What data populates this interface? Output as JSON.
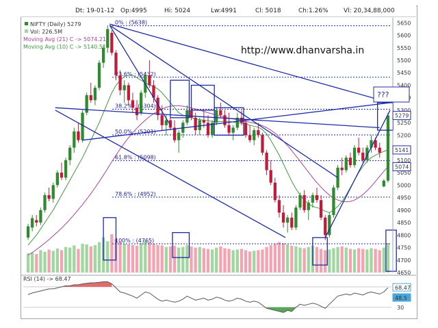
{
  "header": {
    "date": "Dt: 19-01-12",
    "open": "Op:4995",
    "high": "Hi: 5024",
    "low": "Lw:4991",
    "close": "Cl: 5018",
    "change": "Ch:1.26%",
    "volume": "Vl: 20,34,88,000"
  },
  "legend": {
    "symbol": "NIFTY (Daily) 5279",
    "volume": "Vol: 226.5M",
    "ma21": "Moving Avg (21) C -> 5074.21",
    "ma10": "Moving Avg (10) C -> 5140.51"
  },
  "watermark": "http://www.dhanvarsha.in",
  "question": "???",
  "rsi_label": "RSI (14) -> 68.47",
  "colors": {
    "up": "#2e8b2e",
    "down": "#c41a3a",
    "vol_up": "#9fd79f",
    "vol_down": "#f3a3b2",
    "ma21": "#b0409a",
    "ma10": "#3f9a3f",
    "trend": "#1c2aa8",
    "rsi": "#555555",
    "rsi_fill_high": "#e05050",
    "rsi_fill_low": "#3a9a3a",
    "badge_price": "#1c2aa8",
    "badge_rsi": "#49a6d8"
  },
  "chart_data": {
    "type": "candlestick",
    "y_axis_ticks": [
      5650,
      5600,
      5550,
      5500,
      5450,
      5400,
      5350,
      5300,
      5250,
      5200,
      5150,
      5100,
      5050,
      5000,
      4950,
      4900,
      4850,
      4800,
      4750,
      4700,
      4650
    ],
    "ylim": [
      4650,
      5670
    ],
    "price_badges": [
      "5279",
      "5141",
      "5074"
    ],
    "fibonacci": [
      {
        "label": "0% : (5638)",
        "value": 5638
      },
      {
        "label": "23.6% : (5432)",
        "value": 5432
      },
      {
        "label": "38.2% : (5304)",
        "value": 5304
      },
      {
        "label": "50.0% : (5201)",
        "value": 5201
      },
      {
        "label": "61.8% : (5098)",
        "value": 5098
      },
      {
        "label": "78.6% : (4952)",
        "value": 4952
      },
      {
        "label": "100% : (4765)",
        "value": 4765
      }
    ],
    "candles": [
      [
        4790,
        4845,
        4780,
        4835
      ],
      [
        4830,
        4880,
        4815,
        4868
      ],
      [
        4860,
        4880,
        4835,
        4850
      ],
      [
        4850,
        4910,
        4840,
        4900
      ],
      [
        4900,
        4970,
        4890,
        4960
      ],
      [
        4960,
        4990,
        4935,
        4945
      ],
      [
        4945,
        5010,
        4930,
        5000
      ],
      [
        5000,
        5060,
        4990,
        5050
      ],
      [
        5050,
        5090,
        5020,
        5030
      ],
      [
        5030,
        5110,
        5020,
        5100
      ],
      [
        5100,
        5160,
        5080,
        5150
      ],
      [
        5150,
        5230,
        5130,
        5215
      ],
      [
        5215,
        5250,
        5170,
        5180
      ],
      [
        5180,
        5300,
        5170,
        5290
      ],
      [
        5290,
        5370,
        5280,
        5360
      ],
      [
        5360,
        5410,
        5330,
        5340
      ],
      [
        5340,
        5400,
        5320,
        5390
      ],
      [
        5390,
        5500,
        5380,
        5490
      ],
      [
        5490,
        5560,
        5470,
        5550
      ],
      [
        5550,
        5640,
        5530,
        5625
      ],
      [
        5610,
        5620,
        5520,
        5530
      ],
      [
        5530,
        5540,
        5420,
        5440
      ],
      [
        5440,
        5460,
        5360,
        5380
      ],
      [
        5380,
        5420,
        5330,
        5400
      ],
      [
        5400,
        5410,
        5320,
        5340
      ],
      [
        5340,
        5370,
        5290,
        5310
      ],
      [
        5310,
        5340,
        5260,
        5280
      ],
      [
        5290,
        5380,
        5280,
        5370
      ],
      [
        5370,
        5450,
        5350,
        5440
      ],
      [
        5440,
        5500,
        5390,
        5400
      ],
      [
        5400,
        5420,
        5330,
        5350
      ],
      [
        5350,
        5360,
        5260,
        5280
      ],
      [
        5280,
        5320,
        5220,
        5240
      ],
      [
        5240,
        5280,
        5200,
        5260
      ],
      [
        5260,
        5300,
        5220,
        5230
      ],
      [
        5230,
        5260,
        5170,
        5180
      ],
      [
        5180,
        5220,
        5130,
        5210
      ],
      [
        5210,
        5260,
        5190,
        5250
      ],
      [
        5250,
        5320,
        5240,
        5300
      ],
      [
        5300,
        5340,
        5260,
        5270
      ],
      [
        5270,
        5290,
        5200,
        5220
      ],
      [
        5220,
        5270,
        5200,
        5260
      ],
      [
        5260,
        5300,
        5230,
        5250
      ],
      [
        5250,
        5280,
        5190,
        5200
      ],
      [
        5200,
        5260,
        5190,
        5250
      ],
      [
        5250,
        5310,
        5240,
        5300
      ],
      [
        5300,
        5330,
        5270,
        5280
      ],
      [
        5280,
        5300,
        5230,
        5240
      ],
      [
        5240,
        5290,
        5200,
        5210
      ],
      [
        5210,
        5240,
        5180,
        5230
      ],
      [
        5230,
        5290,
        5220,
        5270
      ],
      [
        5270,
        5300,
        5240,
        5250
      ],
      [
        5250,
        5260,
        5190,
        5200
      ],
      [
        5200,
        5240,
        5170,
        5180
      ],
      [
        5180,
        5230,
        5160,
        5220
      ],
      [
        5220,
        5250,
        5190,
        5200
      ],
      [
        5200,
        5210,
        5120,
        5130
      ],
      [
        5130,
        5140,
        5040,
        5060
      ],
      [
        5060,
        5100,
        5000,
        5010
      ],
      [
        5010,
        5030,
        4930,
        4940
      ],
      [
        4940,
        4960,
        4870,
        4890
      ],
      [
        4890,
        4920,
        4830,
        4850
      ],
      [
        4850,
        4880,
        4810,
        4870
      ],
      [
        4870,
        4890,
        4820,
        4830
      ],
      [
        4830,
        4920,
        4820,
        4910
      ],
      [
        4910,
        4970,
        4900,
        4960
      ],
      [
        4960,
        4980,
        4890,
        4900
      ],
      [
        4900,
        4940,
        4860,
        4930
      ],
      [
        4930,
        4970,
        4910,
        4960
      ],
      [
        4960,
        4990,
        4930,
        4940
      ],
      [
        4940,
        4960,
        4860,
        4870
      ],
      [
        4870,
        4880,
        4780,
        4800
      ],
      [
        4800,
        4890,
        4790,
        4880
      ],
      [
        4880,
        5000,
        4870,
        4990
      ],
      [
        4990,
        5080,
        4980,
        5070
      ],
      [
        5070,
        5110,
        5040,
        5060
      ],
      [
        5060,
        5120,
        5050,
        5110
      ],
      [
        5110,
        5130,
        5070,
        5080
      ],
      [
        5080,
        5160,
        5070,
        5150
      ],
      [
        5150,
        5190,
        5120,
        5130
      ],
      [
        5130,
        5150,
        5090,
        5100
      ],
      [
        5100,
        5160,
        5090,
        5150
      ],
      [
        5150,
        5200,
        5130,
        5180
      ],
      [
        5180,
        5190,
        5140,
        5150
      ],
      [
        5150,
        5170,
        5110,
        5130
      ],
      [
        4995,
        5024,
        4991,
        5018
      ],
      [
        5018,
        5290,
        5010,
        5279
      ]
    ],
    "ma10": [
      4760,
      4780,
      4800,
      4825,
      4850,
      4875,
      4900,
      4930,
      4960,
      4990,
      5020,
      5050,
      5080,
      5110,
      5145,
      5180,
      5215,
      5250,
      5290,
      5330,
      5370,
      5400,
      5420,
      5435,
      5440,
      5440,
      5430,
      5420,
      5410,
      5400,
      5395,
      5385,
      5370,
      5350,
      5330,
      5310,
      5290,
      5280,
      5275,
      5270,
      5265,
      5262,
      5260,
      5258,
      5255,
      5254,
      5255,
      5256,
      5255,
      5253,
      5250,
      5248,
      5245,
      5240,
      5236,
      5232,
      5222,
      5205,
      5180,
      5150,
      5120,
      5085,
      5050,
      5015,
      4985,
      4960,
      4940,
      4925,
      4915,
      4910,
      4905,
      4895,
      4890,
      4900,
      4915,
      4935,
      4960,
      4990,
      5020,
      5050,
      5075,
      5095,
      5110,
      5120,
      5128,
      5135,
      5141
    ],
    "ma21": [
      4720,
      4730,
      4742,
      4755,
      4768,
      4782,
      4797,
      4812,
      4828,
      4845,
      4863,
      4882,
      4902,
      4922,
      4944,
      4966,
      4990,
      5014,
      5040,
      5066,
      5094,
      5120,
      5145,
      5168,
      5190,
      5210,
      5228,
      5245,
      5260,
      5274,
      5286,
      5296,
      5305,
      5312,
      5316,
      5318,
      5318,
      5316,
      5313,
      5309,
      5305,
      5300,
      5295,
      5290,
      5285,
      5280,
      5276,
      5272,
      5268,
      5265,
      5262,
      5258,
      5255,
      5252,
      5248,
      5244,
      5238,
      5230,
      5220,
      5208,
      5193,
      5176,
      5158,
      5138,
      5117,
      5096,
      5074,
      5052,
      5030,
      5010,
      4992,
      4975,
      4960,
      4948,
      4940,
      4935,
      4933,
      4935,
      4940,
      4950,
      4962,
      4978,
      4995,
      5015,
      5035,
      5055,
      5074
    ],
    "volume": [
      60,
      62,
      58,
      70,
      65,
      72,
      68,
      75,
      70,
      80,
      78,
      85,
      74,
      90,
      88,
      82,
      86,
      95,
      110,
      98,
      120,
      105,
      96,
      90,
      88,
      86,
      84,
      92,
      100,
      95,
      90,
      86,
      85,
      80,
      82,
      84,
      78,
      80,
      86,
      82,
      78,
      80,
      76,
      74,
      72,
      78,
      82,
      76,
      74,
      70,
      72,
      74,
      70,
      66,
      68,
      70,
      72,
      80,
      86,
      90,
      95,
      92,
      88,
      84,
      82,
      78,
      76,
      80,
      84,
      80,
      74,
      70,
      72,
      76,
      80,
      82,
      78,
      74,
      72,
      76,
      74,
      72,
      76,
      74,
      70,
      78,
      92
    ],
    "rsi": [
      55,
      58,
      60,
      62,
      64,
      66,
      66,
      68,
      70,
      72,
      72,
      74,
      74,
      76,
      77,
      78,
      78,
      79,
      80,
      80,
      76,
      68,
      60,
      58,
      55,
      52,
      48,
      54,
      60,
      58,
      52,
      46,
      42,
      44,
      42,
      40,
      42,
      46,
      52,
      48,
      44,
      46,
      48,
      44,
      46,
      50,
      48,
      44,
      42,
      44,
      48,
      46,
      42,
      40,
      42,
      40,
      34,
      28,
      26,
      24,
      22,
      20,
      24,
      22,
      30,
      36,
      34,
      36,
      38,
      36,
      32,
      28,
      36,
      44,
      52,
      54,
      56,
      54,
      58,
      56,
      54,
      58,
      60,
      58,
      56,
      60,
      68.47
    ],
    "rsi_ticks": [
      70,
      30
    ],
    "rsi_badges": [
      "68.47",
      "48.5"
    ]
  }
}
